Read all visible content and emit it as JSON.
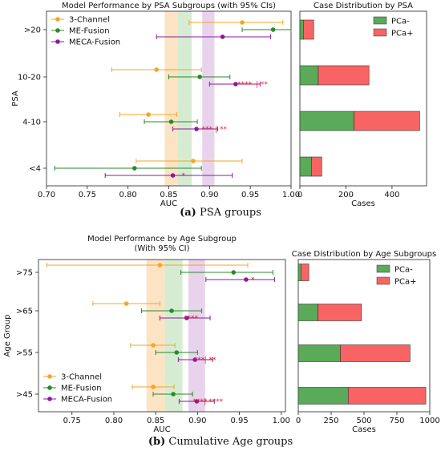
{
  "captions": {
    "a": {
      "label": "(a)",
      "text": "PSA groups"
    },
    "b": {
      "label": "(b)",
      "text": "Cumulative Age groups"
    }
  },
  "colors": {
    "three_channel": "#f5a623",
    "me_fusion": "#2a8a2a",
    "meca_fusion": "#8b1a9e",
    "sig": "#e8242a",
    "pca_minus": "#5aaa5a",
    "pca_plus": "#f86464",
    "band_orange": "#fbe3c3",
    "band_green": "#d5ecd2",
    "band_purple": "#e8d3ec"
  },
  "chart_data": [
    {
      "type": "scatter",
      "variant": "forest-plot",
      "title": "Model Performance by PSA Subgroups (with 95% CIs)",
      "xlabel": "AUC",
      "ylabel": "PSA",
      "xlim": [
        0.7,
        1.0
      ],
      "xticks": [
        "0.70",
        "0.75",
        "0.80",
        "0.85",
        "0.90",
        "0.95",
        "1.00"
      ],
      "categories": [
        ">20",
        "10-20",
        "4-10",
        "<4"
      ],
      "legend": "top-left",
      "bands": [
        {
          "color_key": "band_orange",
          "from": 0.845,
          "to": 0.861
        },
        {
          "color_key": "band_green",
          "from": 0.861,
          "to": 0.878
        },
        {
          "color_key": "band_purple",
          "from": 0.891,
          "to": 0.906
        }
      ],
      "series": [
        {
          "name": "3-Channel",
          "color_key": "three_channel",
          "points": [
            {
              "cat": ">20",
              "auc": 0.94,
              "lo": 0.875,
              "hi": 0.99
            },
            {
              "cat": "10-20",
              "auc": 0.835,
              "lo": 0.78,
              "hi": 0.89
            },
            {
              "cat": "4-10",
              "auc": 0.825,
              "lo": 0.79,
              "hi": 0.86
            },
            {
              "cat": "<4",
              "auc": 0.88,
              "lo": 0.81,
              "hi": 0.94
            }
          ]
        },
        {
          "name": "ME-Fusion",
          "color_key": "me_fusion",
          "points": [
            {
              "cat": ">20",
              "auc": 0.978,
              "lo": 0.94,
              "hi": 1.0
            },
            {
              "cat": "10-20",
              "auc": 0.888,
              "lo": 0.85,
              "hi": 0.925
            },
            {
              "cat": "4-10",
              "auc": 0.853,
              "lo": 0.82,
              "hi": 0.885
            },
            {
              "cat": "<4",
              "auc": 0.808,
              "lo": 0.71,
              "hi": 0.89
            }
          ]
        },
        {
          "name": "MECA-Fusion",
          "color_key": "meca_fusion",
          "points": [
            {
              "cat": ">20",
              "auc": 0.916,
              "lo": 0.835,
              "hi": 0.975
            },
            {
              "cat": "10-20",
              "auc": 0.932,
              "lo": 0.9,
              "hi": 0.962
            },
            {
              "cat": "4-10",
              "auc": 0.884,
              "lo": 0.855,
              "hi": 0.91
            },
            {
              "cat": "<4",
              "auc": 0.855,
              "lo": 0.772,
              "hi": 0.928
            }
          ]
        }
      ],
      "annotations": [
        {
          "cat": "10-20",
          "text": "****",
          "x": 0.943
        },
        {
          "cat": "10-20",
          "text": "| **",
          "x": 0.964
        },
        {
          "cat": "4-10",
          "text": "***",
          "x": 0.897
        },
        {
          "cat": "4-10",
          "text": "| **",
          "x": 0.914
        },
        {
          "cat": "<4",
          "text": "*",
          "x": 0.868
        }
      ]
    },
    {
      "type": "bar",
      "orientation": "horizontal",
      "stacked": true,
      "title": "Case Distribution by PSA",
      "xlabel": "Cases",
      "xlim": [
        0,
        550
      ],
      "xticks": [
        "0",
        "200",
        "400"
      ],
      "categories": [
        ">20",
        "10-20",
        "4-10",
        "<4"
      ],
      "legend": "top-right",
      "series": [
        {
          "name": "PCa-",
          "color_key": "pca_minus",
          "values": [
            15,
            80,
            235,
            50
          ]
        },
        {
          "name": "PCa+",
          "color_key": "pca_plus",
          "values": [
            45,
            220,
            285,
            45
          ]
        }
      ]
    },
    {
      "type": "scatter",
      "variant": "forest-plot",
      "title": "Model Performance by Age Subgroup",
      "subtitle": "(With 95% CI)",
      "xlabel": "AUC",
      "ylabel": "Age Group",
      "xlim": [
        0.71,
        1.005
      ],
      "xticks": [
        "0.75",
        "0.80",
        "0.85",
        "0.90",
        "0.95",
        "1.00"
      ],
      "categories": [
        ">75",
        ">65",
        ">55",
        ">45"
      ],
      "legend": "bottom-left",
      "bands": [
        {
          "color_key": "band_orange",
          "from": 0.839,
          "to": 0.861
        },
        {
          "color_key": "band_green",
          "from": 0.861,
          "to": 0.882
        },
        {
          "color_key": "band_purple",
          "from": 0.889,
          "to": 0.909
        }
      ],
      "series": [
        {
          "name": "3-Channel",
          "color_key": "three_channel",
          "points": [
            {
              "cat": ">75",
              "auc": 0.855,
              "lo": 0.72,
              "hi": 0.96
            },
            {
              "cat": ">65",
              "auc": 0.815,
              "lo": 0.775,
              "hi": 0.855
            },
            {
              "cat": ">55",
              "auc": 0.847,
              "lo": 0.82,
              "hi": 0.873
            },
            {
              "cat": ">45",
              "auc": 0.847,
              "lo": 0.822,
              "hi": 0.872
            }
          ]
        },
        {
          "name": "ME-Fusion",
          "color_key": "me_fusion",
          "points": [
            {
              "cat": ">75",
              "auc": 0.943,
              "lo": 0.88,
              "hi": 0.99
            },
            {
              "cat": ">65",
              "auc": 0.869,
              "lo": 0.833,
              "hi": 0.905
            },
            {
              "cat": ">55",
              "auc": 0.875,
              "lo": 0.85,
              "hi": 0.9
            },
            {
              "cat": ">45",
              "auc": 0.871,
              "lo": 0.847,
              "hi": 0.894
            }
          ]
        },
        {
          "name": "MECA-Fusion",
          "color_key": "meca_fusion",
          "points": [
            {
              "cat": ">75",
              "auc": 0.958,
              "lo": 0.91,
              "hi": 0.992
            },
            {
              "cat": ">65",
              "auc": 0.887,
              "lo": 0.855,
              "hi": 0.915
            },
            {
              "cat": ">55",
              "auc": 0.897,
              "lo": 0.877,
              "hi": 0.918
            },
            {
              "cat": ">45",
              "auc": 0.899,
              "lo": 0.878,
              "hi": 0.92
            }
          ]
        }
      ],
      "annotations": [
        {
          "cat": ">75",
          "text": "*",
          "x": 0.966
        },
        {
          "cat": ">65",
          "text": "****",
          "x": 0.892
        },
        {
          "cat": ">55",
          "text": "***",
          "x": 0.902
        },
        {
          "cat": ">55",
          "text": "| **",
          "x": 0.915
        },
        {
          "cat": ">45",
          "text": "****",
          "x": 0.903
        },
        {
          "cat": ">45",
          "text": "| ****",
          "x": 0.919
        }
      ]
    },
    {
      "type": "bar",
      "orientation": "horizontal",
      "stacked": true,
      "title": "Case Distribution by Age Subgroups",
      "xlabel": "Cases",
      "xlim": [
        0,
        1000
      ],
      "xticks": [
        "0",
        "250",
        "500",
        "750",
        "1000"
      ],
      "categories": [
        ">75",
        ">65",
        ">55",
        ">45"
      ],
      "legend": "top-right",
      "series": [
        {
          "name": "PCa-",
          "color_key": "pca_minus",
          "values": [
            20,
            150,
            320,
            380
          ]
        },
        {
          "name": "PCa+",
          "color_key": "pca_plus",
          "values": [
            60,
            330,
            530,
            590
          ]
        }
      ]
    }
  ]
}
